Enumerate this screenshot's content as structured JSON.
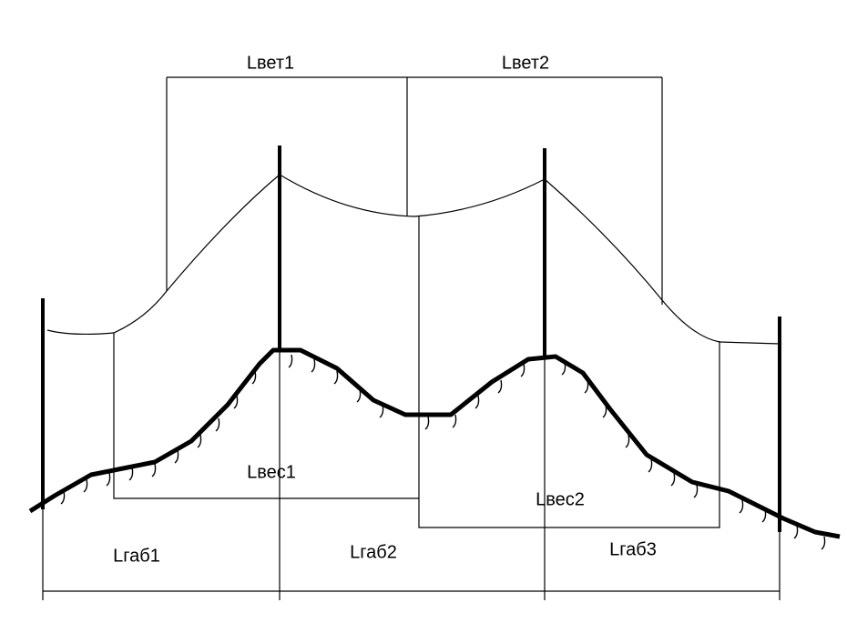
{
  "labels": {
    "span_wind_1": "Lвет1",
    "span_wind_2": "Lвет2",
    "span_weight_1": "Lвес1",
    "span_weight_2": "Lвес2",
    "span_clear_1": "Lгаб1",
    "span_clear_2": "Lгаб2",
    "span_clear_3": "Lгаб3"
  }
}
